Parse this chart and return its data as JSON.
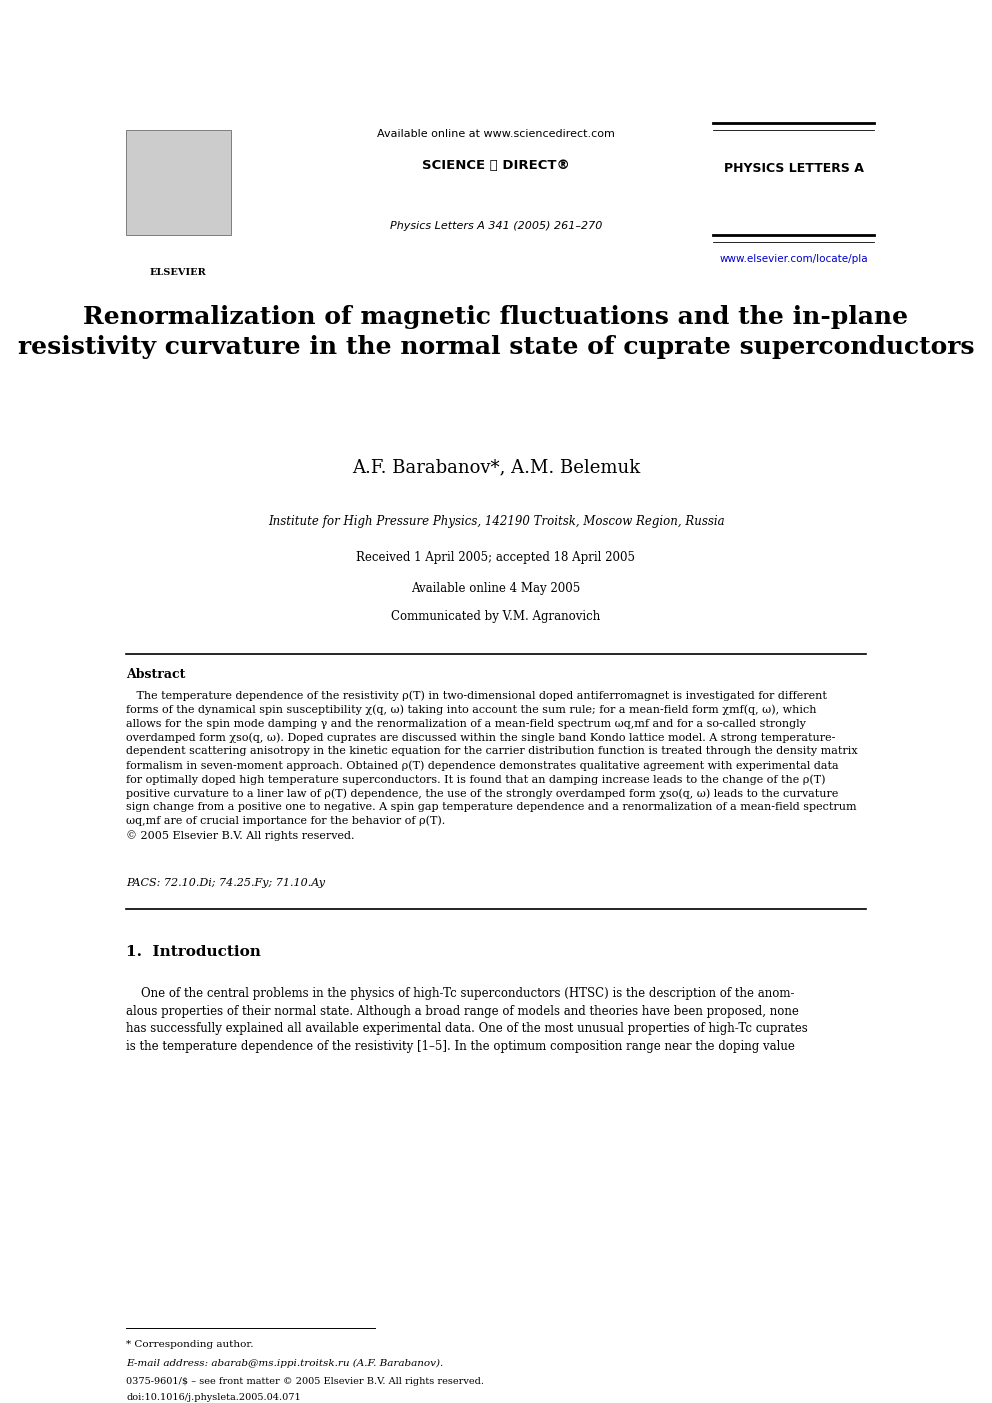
{
  "bg_color": "#ffffff",
  "header": {
    "available_online": "Available online at www.sciencedirect.com",
    "sciencedirect_logo": "SCIENCE ⓐ DIRECT®",
    "journal_name": "PHYSICS LETTERS A",
    "journal_issue": "Physics Letters A 341 (2005) 261–270",
    "website": "www.elsevier.com/locate/pla"
  },
  "title": "Renormalization of magnetic fluctuations and the in-plane\nresistivity curvature in the normal state of cuprate superconductors",
  "authors": "A.F. Barabanov*, A.M. Belemuk",
  "affiliation": "Institute for High Pressure Physics, 142190 Troitsk, Moscow Region, Russia",
  "received": "Received 1 April 2005; accepted 18 April 2005",
  "available": "Available online 4 May 2005",
  "communicated": "Communicated by V.M. Agranovich",
  "abstract_title": "Abstract",
  "pacs": "PACS: 72.10.Di; 74.25.Fy; 71.10.Ay",
  "section1_title": "1.  Introduction",
  "footnote_star": "* Corresponding author.",
  "footnote_email": "E-mail address: abarab@ms.ippi.troitsk.ru (A.F. Barabanov).",
  "footnote_issn": "0375-9601/$ – see front matter © 2005 Elsevier B.V. All rights reserved.",
  "footnote_doi": "doi:10.1016/j.physleta.2005.04.071"
}
